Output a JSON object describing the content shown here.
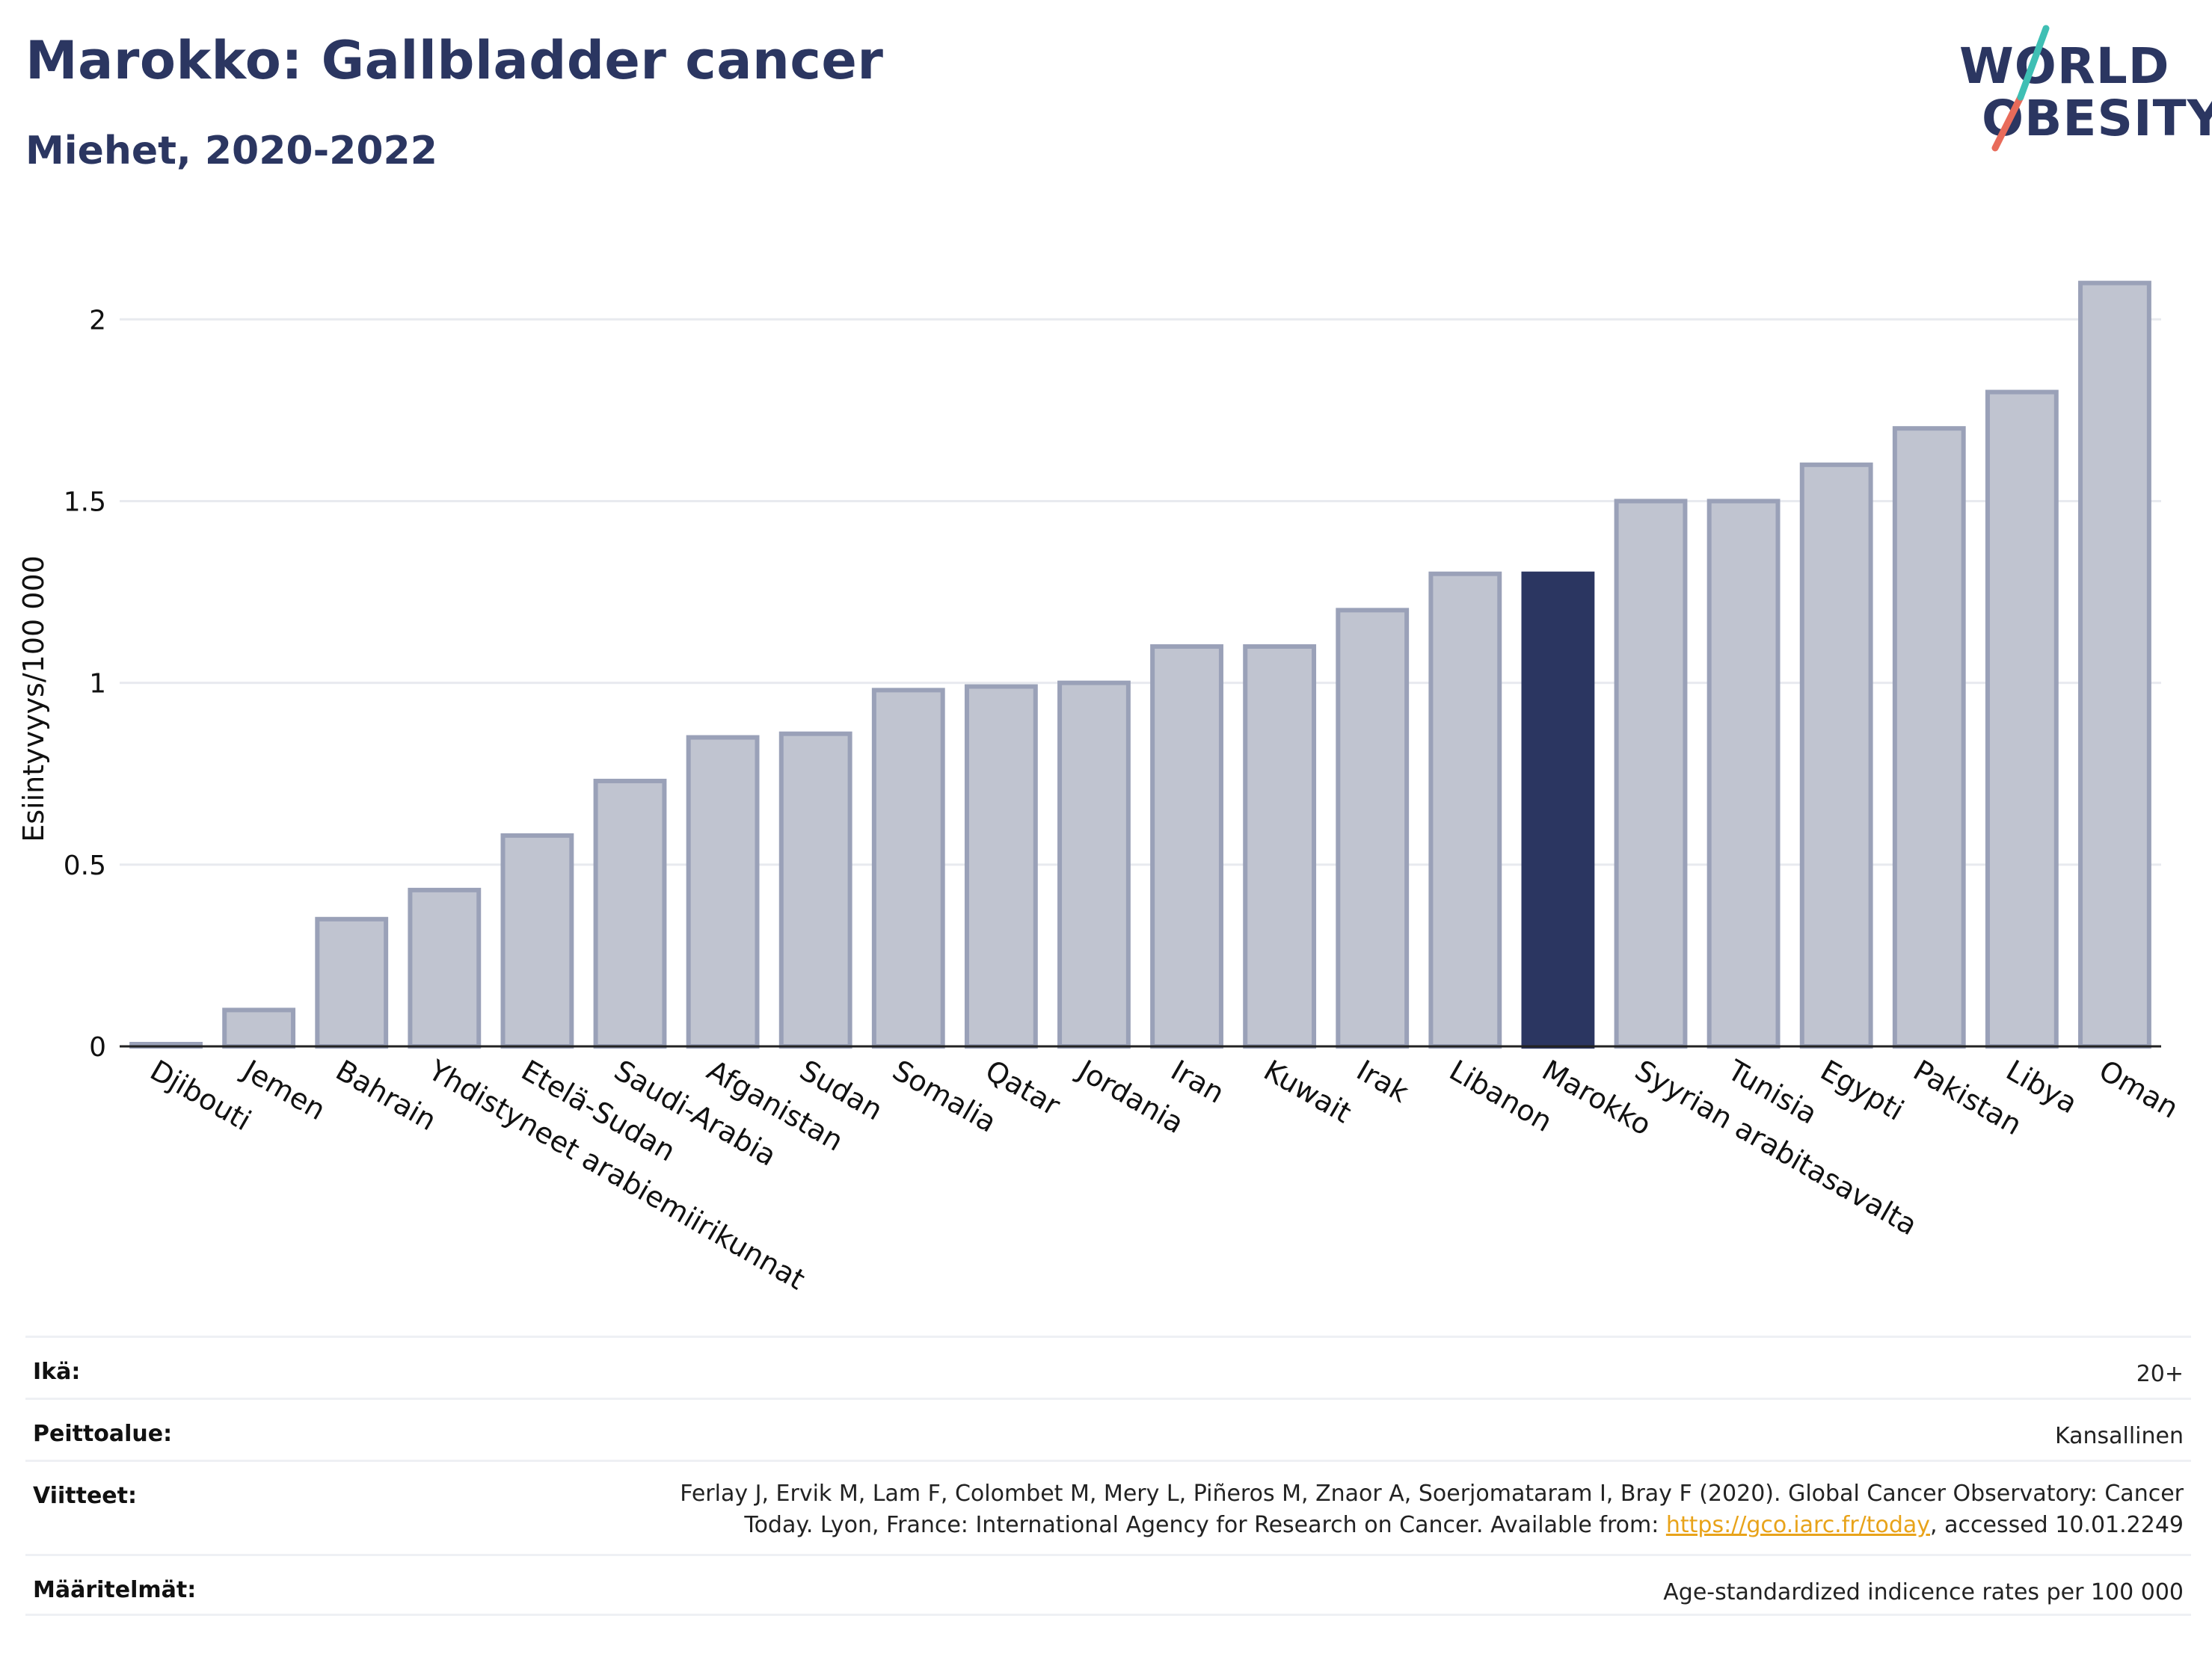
{
  "header": {
    "title": "Marokko: Gallbladder cancer",
    "subtitle": "Miehet, 2020-2022"
  },
  "logo": {
    "line1": "WORLD",
    "line2": "OBESITY",
    "accent_colors": [
      "#3fbfb4",
      "#e86b5a"
    ]
  },
  "colors": {
    "highlight": "#2b3661",
    "bar_fill": "#c0c4d0",
    "bar_stroke": "#9aa1b8",
    "grid": "#e8eaef"
  },
  "chart_data": {
    "type": "bar",
    "title": "",
    "xlabel": "",
    "ylabel": "Esiintyvyys/100 000",
    "ylim": [
      0,
      2.2
    ],
    "yticks": [
      0,
      0.5,
      1,
      1.5,
      2
    ],
    "ytick_labels": [
      "0",
      "0.5",
      "1",
      "1.5",
      "2"
    ],
    "categories": [
      "Djibouti",
      "Jemen",
      "Bahrain",
      "Yhdistyneet arabiemiirikunnat",
      "Etelä-Sudan",
      "Saudi-Arabia",
      "Afganistan",
      "Sudan",
      "Somalia",
      "Qatar",
      "Jordania",
      "Iran",
      "Kuwait",
      "Irak",
      "Libanon",
      "Marokko",
      "Syyrian arabitasavalta",
      "Tunisia",
      "Egypti",
      "Pakistan",
      "Libya",
      "Oman"
    ],
    "values": [
      0.0,
      0.1,
      0.35,
      0.43,
      0.58,
      0.73,
      0.85,
      0.86,
      0.98,
      0.99,
      1.0,
      1.1,
      1.1,
      1.2,
      1.3,
      1.3,
      1.5,
      1.5,
      1.6,
      1.7,
      1.8,
      2.1
    ],
    "highlight": "Marokko",
    "grid": true
  },
  "footer": {
    "rows": [
      {
        "label": "Ikä:",
        "value": "20+"
      },
      {
        "label": "Peittoalue:",
        "value": "Kansallinen"
      },
      {
        "label": "Viitteet:",
        "value_line1": "Ferlay J, Ervik M, Lam F, Colombet M, Mery L, Piñeros M, Znaor A, Soerjomataram I, Bray F (2020). Global Cancer Observatory: Cancer",
        "value_line2_pre": "Today. Lyon, France: International Agency for Research on Cancer. Available from: ",
        "link": "https://gco.iarc.fr/today",
        "value_line2_post": ", accessed 10.01.2249"
      },
      {
        "label": "Määritelmät:",
        "value": "Age-standardized indicence rates per 100 000"
      }
    ]
  }
}
